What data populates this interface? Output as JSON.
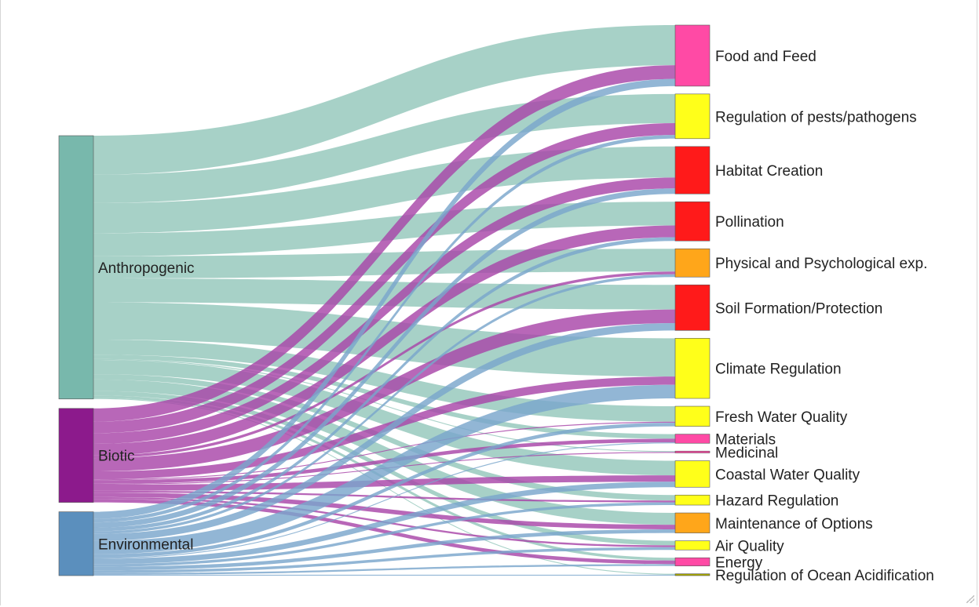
{
  "chart_data": {
    "type": "sankey",
    "sources": [
      {
        "name": "Anthropogenic",
        "color": "#78b8ac"
      },
      {
        "name": "Biotic",
        "color": "#8c1a8c"
      },
      {
        "name": "Environmental",
        "color": "#5b8fbd"
      }
    ],
    "targets": [
      {
        "name": "Food and Feed",
        "color": "#ff4aa5"
      },
      {
        "name": "Regulation of pests/pathogens",
        "color": "#ffff1a"
      },
      {
        "name": "Habitat Creation",
        "color": "#ff1a1a"
      },
      {
        "name": "Pollination",
        "color": "#ff1a1a"
      },
      {
        "name": "Physical and Psychological exp.",
        "color": "#ffa61a"
      },
      {
        "name": "Soil Formation/Protection",
        "color": "#ff1a1a"
      },
      {
        "name": "Climate Regulation",
        "color": "#ffff1a"
      },
      {
        "name": "Fresh Water Quality",
        "color": "#ffff1a"
      },
      {
        "name": "Materials",
        "color": "#ff4aa5"
      },
      {
        "name": "Medicinal",
        "color": "#ff4aa5"
      },
      {
        "name": "Coastal Water Quality",
        "color": "#ffff1a"
      },
      {
        "name": "Hazard Regulation",
        "color": "#ffff1a"
      },
      {
        "name": "Maintenance of Options",
        "color": "#ffa61a"
      },
      {
        "name": "Air Quality",
        "color": "#ffff1a"
      },
      {
        "name": "Energy",
        "color": "#ff4aa5"
      },
      {
        "name": "Regulation of Ocean Acidification",
        "color": "#a6a600"
      }
    ],
    "link_colors": {
      "Anthropogenic": "#94c7bb",
      "Biotic": "#a846a8",
      "Environmental": "#7aa6cc"
    },
    "links": [
      {
        "source": "Anthropogenic",
        "target": "Food and Feed",
        "value": 44
      },
      {
        "source": "Anthropogenic",
        "target": "Regulation of pests/pathogens",
        "value": 32
      },
      {
        "source": "Anthropogenic",
        "target": "Habitat Creation",
        "value": 34
      },
      {
        "source": "Anthropogenic",
        "target": "Pollination",
        "value": 26
      },
      {
        "source": "Anthropogenic",
        "target": "Physical and Psychological exp.",
        "value": 25
      },
      {
        "source": "Anthropogenic",
        "target": "Soil Formation/Protection",
        "value": 27
      },
      {
        "source": "Anthropogenic",
        "target": "Climate Regulation",
        "value": 42
      },
      {
        "source": "Anthropogenic",
        "target": "Fresh Water Quality",
        "value": 17
      },
      {
        "source": "Anthropogenic",
        "target": "Materials",
        "value": 5
      },
      {
        "source": "Anthropogenic",
        "target": "Medicinal",
        "value": 1
      },
      {
        "source": "Anthropogenic",
        "target": "Coastal Water Quality",
        "value": 16
      },
      {
        "source": "Anthropogenic",
        "target": "Hazard Regulation",
        "value": 6
      },
      {
        "source": "Anthropogenic",
        "target": "Maintenance of Options",
        "value": 13
      },
      {
        "source": "Anthropogenic",
        "target": "Air Quality",
        "value": 5
      },
      {
        "source": "Anthropogenic",
        "target": "Energy",
        "value": 3
      },
      {
        "source": "Anthropogenic",
        "target": "Regulation of Ocean Acidification",
        "value": 1
      },
      {
        "source": "Biotic",
        "target": "Food and Feed",
        "value": 15
      },
      {
        "source": "Biotic",
        "target": "Regulation of pests/pathogens",
        "value": 13
      },
      {
        "source": "Biotic",
        "target": "Habitat Creation",
        "value": 12
      },
      {
        "source": "Biotic",
        "target": "Pollination",
        "value": 13
      },
      {
        "source": "Biotic",
        "target": "Physical and Psychological exp.",
        "value": 3
      },
      {
        "source": "Biotic",
        "target": "Soil Formation/Protection",
        "value": 15
      },
      {
        "source": "Biotic",
        "target": "Climate Regulation",
        "value": 9
      },
      {
        "source": "Biotic",
        "target": "Fresh Water Quality",
        "value": 1
      },
      {
        "source": "Biotic",
        "target": "Materials",
        "value": 4
      },
      {
        "source": "Biotic",
        "target": "Medicinal",
        "value": 1
      },
      {
        "source": "Biotic",
        "target": "Coastal Water Quality",
        "value": 7
      },
      {
        "source": "Biotic",
        "target": "Hazard Regulation",
        "value": 2
      },
      {
        "source": "Biotic",
        "target": "Maintenance of Options",
        "value": 5
      },
      {
        "source": "Biotic",
        "target": "Air Quality",
        "value": 2
      },
      {
        "source": "Biotic",
        "target": "Energy",
        "value": 4
      },
      {
        "source": "Environmental",
        "target": "Food and Feed",
        "value": 8
      },
      {
        "source": "Environmental",
        "target": "Regulation of pests/pathogens",
        "value": 4
      },
      {
        "source": "Environmental",
        "target": "Habitat Creation",
        "value": 6
      },
      {
        "source": "Environmental",
        "target": "Pollination",
        "value": 4
      },
      {
        "source": "Environmental",
        "target": "Physical and Psychological exp.",
        "value": 3
      },
      {
        "source": "Environmental",
        "target": "Soil Formation/Protection",
        "value": 8
      },
      {
        "source": "Environmental",
        "target": "Climate Regulation",
        "value": 15
      },
      {
        "source": "Environmental",
        "target": "Fresh Water Quality",
        "value": 4
      },
      {
        "source": "Environmental",
        "target": "Materials",
        "value": 1
      },
      {
        "source": "Environmental",
        "target": "Coastal Water Quality",
        "value": 6
      },
      {
        "source": "Environmental",
        "target": "Hazard Regulation",
        "value": 3
      },
      {
        "source": "Environmental",
        "target": "Maintenance of Options",
        "value": 4
      },
      {
        "source": "Environmental",
        "target": "Air Quality",
        "value": 3
      },
      {
        "source": "Environmental",
        "target": "Energy",
        "value": 2
      },
      {
        "source": "Environmental",
        "target": "Regulation of Ocean Acidification",
        "value": 1
      }
    ]
  }
}
